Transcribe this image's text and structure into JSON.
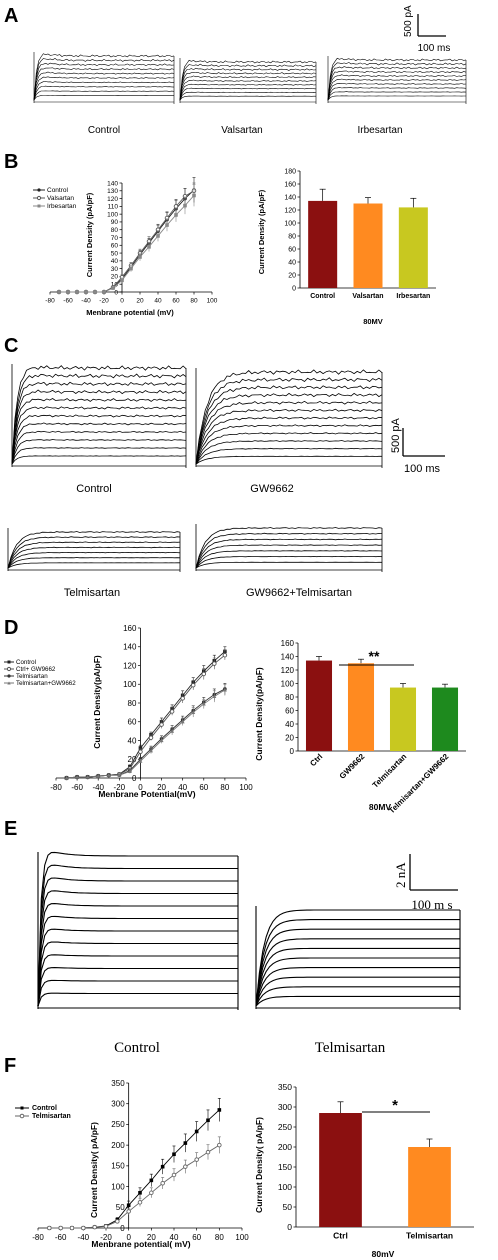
{
  "panels": {
    "A": {
      "letter": "A",
      "traces": {
        "labels": [
          "Control",
          "Valsartan",
          "Irbesartan"
        ]
      },
      "scale": {
        "y_label": "500 pA",
        "x_label": "100 ms"
      }
    },
    "B": {
      "letter": "B",
      "line": {
        "ylabel": "Current Density (pA/pF)",
        "xlabel": "Menbrane potential (mV)",
        "legend": [
          "Control",
          "Valsartan",
          "Irbesartan"
        ],
        "xticks": [
          "-80",
          "-60",
          "-40",
          "-20",
          "0",
          "20",
          "40",
          "60",
          "80",
          "100"
        ],
        "yticks": [
          "0",
          "10",
          "20",
          "30",
          "40",
          "50",
          "60",
          "70",
          "80",
          "90",
          "100",
          "110",
          "120",
          "130",
          "140"
        ]
      },
      "bar": {
        "ylabel": "Current Density (pA/pF)",
        "xlabel": "80MV",
        "yticks": [
          "0",
          "20",
          "40",
          "60",
          "80",
          "100",
          "120",
          "140",
          "160",
          "180"
        ]
      }
    },
    "C": {
      "letter": "C",
      "traces": {
        "labels": [
          "Control",
          "GW9662",
          "Telmisartan",
          "GW9662+Telmisartan"
        ]
      },
      "scale": {
        "y_label": "500 pA",
        "x_label": "100 ms"
      }
    },
    "D": {
      "letter": "D",
      "line": {
        "ylabel": "Current Density(pA/pF)",
        "xlabel": "Menbrane Potential(mV)",
        "legend": [
          "Control",
          "Ctrl+ GW9662",
          "Telmisartan",
          "Telmisartan+GW9662"
        ],
        "xticks": [
          "-80",
          "-60",
          "-40",
          "-20",
          "0",
          "20",
          "40",
          "60",
          "80",
          "100"
        ],
        "yticks": [
          "0",
          "20",
          "40",
          "60",
          "80",
          "100",
          "120",
          "140",
          "160"
        ]
      },
      "bar": {
        "ylabel": "Current Density(pA/pF)",
        "xlabel": "80MV",
        "significance": "**",
        "yticks": [
          "0",
          "20",
          "40",
          "60",
          "80",
          "100",
          "120",
          "140",
          "160"
        ]
      }
    },
    "E": {
      "letter": "E",
      "traces": {
        "labels": [
          "Control",
          "Telmisartan"
        ]
      },
      "scale": {
        "y_label": "2 nA",
        "x_label": "100 m s"
      }
    },
    "F": {
      "letter": "F",
      "line": {
        "ylabel": "Current Density( pA/pF)",
        "xlabel": "Menbrane potential( mV)",
        "legend": [
          "Control",
          "Telmisartan"
        ],
        "xticks": [
          "-80",
          "-60",
          "-40",
          "-20",
          "0",
          "20",
          "40",
          "60",
          "80",
          "100"
        ],
        "yticks": [
          "0",
          "50",
          "100",
          "150",
          "200",
          "250",
          "300",
          "350"
        ]
      },
      "bar": {
        "ylabel": "Current Density( pA/pF)",
        "xlabel": "80mV",
        "significance": "*",
        "yticks": [
          "0",
          "50",
          "100",
          "150",
          "200",
          "250",
          "300",
          "350"
        ]
      }
    }
  },
  "chart_data": [
    {
      "type": "line",
      "panel": "B",
      "x": [
        -70,
        -60,
        -50,
        -40,
        -30,
        -20,
        -10,
        0,
        10,
        20,
        30,
        40,
        50,
        60,
        70,
        80
      ],
      "xlim": [
        -80,
        100
      ],
      "ylim": [
        0,
        140
      ],
      "series": [
        {
          "name": "Control",
          "values": [
            0,
            0,
            0,
            0,
            0,
            0,
            6,
            17,
            32,
            48,
            63,
            78,
            93,
            107,
            120,
            131
          ],
          "errors": [
            0,
            0,
            0,
            0,
            0,
            0,
            2,
            3,
            4,
            5,
            6,
            8,
            9,
            11,
            13,
            16
          ],
          "color": "#222222"
        },
        {
          "name": "Valsartan",
          "values": [
            0,
            0,
            0,
            0,
            0,
            0,
            6,
            19,
            34,
            50,
            65,
            80,
            95,
            110,
            123,
            130
          ],
          "errors": [
            0,
            0,
            0,
            0,
            0,
            0,
            2,
            3,
            4,
            5,
            6,
            7,
            8,
            9,
            10,
            10
          ],
          "color": "#555555"
        },
        {
          "name": "Irbesartan",
          "values": [
            0,
            0,
            0,
            0,
            0,
            0,
            5,
            15,
            30,
            45,
            58,
            72,
            86,
            99,
            111,
            124
          ],
          "errors": [
            0,
            0,
            0,
            0,
            0,
            0,
            2,
            3,
            4,
            5,
            6,
            7,
            8,
            9,
            11,
            14
          ],
          "color": "#888888"
        }
      ]
    },
    {
      "type": "bar",
      "panel": "B",
      "categories": [
        "Control",
        "Valsartan",
        "Irbesartan"
      ],
      "values": [
        134,
        130,
        124
      ],
      "errors": [
        18,
        9,
        14
      ],
      "colors": [
        "#8b1010",
        "#ff8a20",
        "#c8c820"
      ],
      "ylim": [
        0,
        180
      ]
    },
    {
      "type": "line",
      "panel": "D",
      "x": [
        -70,
        -60,
        -50,
        -40,
        -30,
        -20,
        -10,
        0,
        10,
        20,
        30,
        40,
        50,
        60,
        70,
        80
      ],
      "xlim": [
        -80,
        100
      ],
      "ylim": [
        0,
        160
      ],
      "series": [
        {
          "name": "Control",
          "values": [
            0,
            1,
            1,
            2,
            3,
            4,
            12,
            32,
            46,
            60,
            74,
            88,
            102,
            114,
            125,
            135
          ],
          "errors": [
            0,
            0,
            0,
            0,
            0,
            1,
            2,
            3,
            3,
            4,
            4,
            5,
            5,
            6,
            6,
            5
          ],
          "color": "#222222"
        },
        {
          "name": "Ctrl+ GW9662",
          "values": [
            0,
            1,
            1,
            2,
            3,
            4,
            10,
            28,
            43,
            57,
            71,
            85,
            99,
            111,
            122,
            131
          ],
          "errors": [
            0,
            0,
            0,
            0,
            0,
            1,
            2,
            3,
            3,
            4,
            4,
            5,
            5,
            6,
            6,
            5
          ],
          "color": "#555555"
        },
        {
          "name": "Telmisartan",
          "values": [
            0,
            1,
            1,
            2,
            3,
            3,
            8,
            20,
            31,
            42,
            52,
            62,
            72,
            81,
            89,
            95
          ],
          "errors": [
            0,
            0,
            0,
            0,
            0,
            1,
            2,
            2,
            3,
            3,
            4,
            4,
            5,
            5,
            6,
            6
          ],
          "color": "#333333"
        },
        {
          "name": "Telmisartan+GW9662",
          "values": [
            0,
            1,
            1,
            2,
            3,
            3,
            7,
            18,
            29,
            40,
            50,
            60,
            70,
            79,
            87,
            94
          ],
          "errors": [
            0,
            0,
            0,
            0,
            0,
            1,
            2,
            2,
            3,
            3,
            4,
            4,
            5,
            5,
            6,
            6
          ],
          "color": "#777777"
        }
      ]
    },
    {
      "type": "bar",
      "panel": "D",
      "categories": [
        "Ctrl",
        "GW9662",
        "Telmisartan",
        "Telmisartan+GW9662"
      ],
      "values": [
        134,
        130,
        94,
        94
      ],
      "errors": [
        6,
        6,
        6,
        5
      ],
      "colors": [
        "#8b1010",
        "#ff8a20",
        "#c8c820",
        "#1e8a1e"
      ],
      "ylim": [
        0,
        160
      ]
    },
    {
      "type": "line",
      "panel": "F",
      "x": [
        -70,
        -60,
        -50,
        -40,
        -30,
        -20,
        -10,
        0,
        10,
        20,
        30,
        40,
        50,
        60,
        70,
        80
      ],
      "xlim": [
        -80,
        100
      ],
      "ylim": [
        0,
        350
      ],
      "series": [
        {
          "name": "Control",
          "values": [
            0,
            0,
            0,
            0,
            2,
            5,
            20,
            55,
            85,
            115,
            148,
            178,
            205,
            233,
            260,
            285
          ],
          "errors": [
            0,
            0,
            0,
            0,
            1,
            2,
            5,
            10,
            12,
            15,
            18,
            20,
            22,
            24,
            25,
            28
          ],
          "color": "#000000"
        },
        {
          "name": "Telmisartan",
          "values": [
            0,
            0,
            0,
            0,
            2,
            4,
            16,
            40,
            62,
            85,
            108,
            128,
            148,
            165,
            183,
            200
          ],
          "errors": [
            0,
            0,
            0,
            0,
            1,
            2,
            4,
            8,
            10,
            12,
            14,
            15,
            16,
            17,
            18,
            20
          ],
          "color": "#666666"
        }
      ]
    },
    {
      "type": "bar",
      "panel": "F",
      "categories": [
        "Ctrl",
        "Telmisartan"
      ],
      "values": [
        285,
        200
      ],
      "errors": [
        28,
        20
      ],
      "colors": [
        "#8b1010",
        "#ff8a20"
      ],
      "ylim": [
        0,
        350
      ]
    }
  ]
}
